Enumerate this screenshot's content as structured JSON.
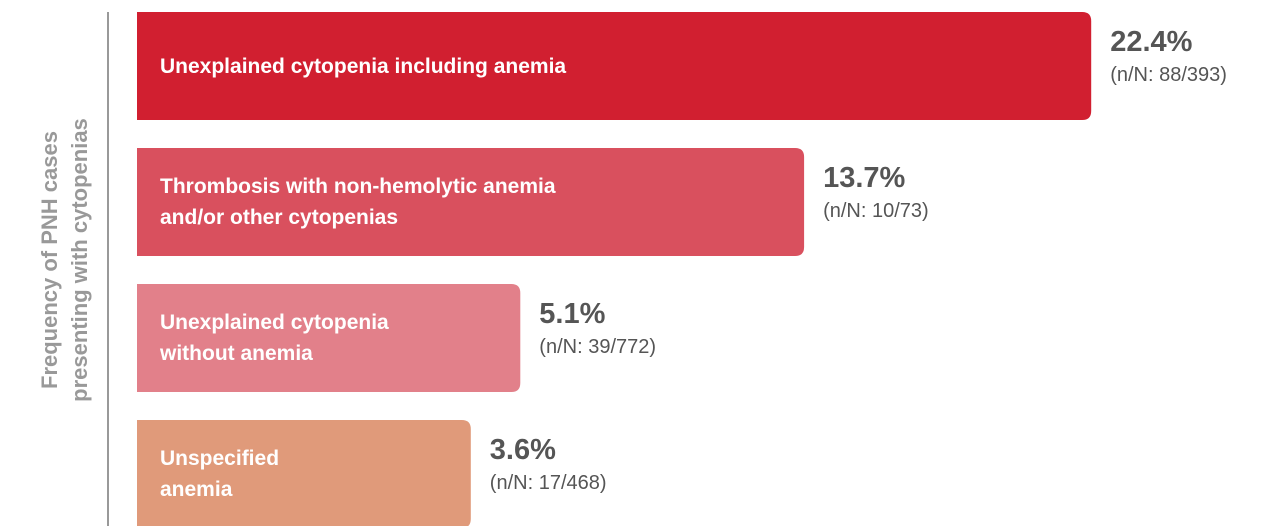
{
  "chart_data": {
    "type": "hbar",
    "y_label": "Frequency of PNH cases\npresenting with cytopenias",
    "categories": [
      "Unexplained cytopenia including anemia",
      "Thrombosis with non-hemolytic anemia\nand/or other cytopenias",
      "Unexplained cytopenia\nwithout anemia",
      "Unspecified\nanemia"
    ],
    "values": [
      22.4,
      13.7,
      5.1,
      3.6
    ],
    "value_labels": [
      "22.4%",
      "13.7%",
      "5.1%",
      "3.6%"
    ],
    "sample_labels": [
      "(n/N: 88/393)",
      "(n/N: 10/73)",
      "(n/N: 39/772)",
      "(n/N: 17/468)"
    ],
    "colors": [
      "#d11f30",
      "#d9505e",
      "#e2808a",
      "#e09a7a"
    ]
  }
}
